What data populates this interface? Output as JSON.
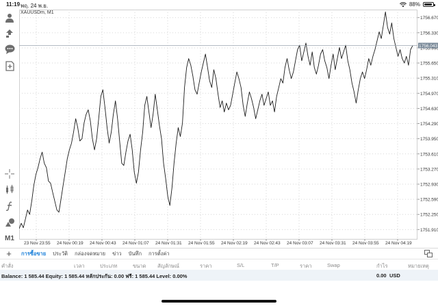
{
  "status_bar": {
    "time": "11:19",
    "date": "พฤ. 24 พ.ย.",
    "battery": "88%",
    "battery_level": 0.88
  },
  "chart": {
    "symbol_label": "XAUUSDm, M1",
    "current_price": "1756.043",
    "line_color": "#1a1a1a",
    "price_tag_color": "#7a8a99"
  },
  "left_tools": [
    {
      "icon": "person-icon"
    },
    {
      "icon": "arrows-icon"
    },
    {
      "icon": "chat-icon"
    },
    {
      "icon": "add-document-icon"
    },
    {
      "icon": "crosshair-icon"
    },
    {
      "icon": "indicator-icon"
    },
    {
      "icon": "function-icon"
    },
    {
      "icon": "objects-icon"
    },
    {
      "icon": "timeframe",
      "label": "M1"
    }
  ],
  "chart_data": {
    "type": "line",
    "title": "XAUUSDm, M1",
    "x_ticks": [
      "23 Nov 23:55",
      "24 Nov 00:19",
      "24 Nov 00:43",
      "24 Nov 01:07",
      "24 Nov 01:31",
      "24 Nov 01:55",
      "24 Nov 02:19",
      "24 Nov 02:43",
      "24 Nov 03:07",
      "24 Nov 03:31",
      "24 Nov 03:55",
      "24 Nov 04:19"
    ],
    "y_ticks": [
      "1756.670",
      "1756.330",
      "1755.990",
      "1755.650",
      "1755.310",
      "1754.970",
      "1754.630",
      "1754.290",
      "1753.950",
      "1753.610",
      "1753.270",
      "1752.930",
      "1752.590",
      "1752.250",
      "1751.910"
    ],
    "ylim": [
      1751.7,
      1756.85
    ],
    "grid": true,
    "current_price": 1756.043,
    "series": [
      {
        "values": [
          1751.93,
          1752.05,
          1751.95,
          1752.15,
          1752.35,
          1752.25,
          1752.55,
          1752.9,
          1753.15,
          1753.3,
          1753.5,
          1753.65,
          1753.4,
          1753.3,
          1753.0,
          1752.95,
          1752.75,
          1752.55,
          1752.35,
          1752.3,
          1752.6,
          1752.9,
          1753.2,
          1753.5,
          1753.7,
          1753.85,
          1754.1,
          1754.4,
          1754.2,
          1753.9,
          1753.95,
          1754.3,
          1754.5,
          1754.6,
          1754.35,
          1753.95,
          1753.7,
          1753.95,
          1754.4,
          1754.9,
          1755.05,
          1754.65,
          1754.2,
          1753.85,
          1754.1,
          1754.5,
          1754.8,
          1754.4,
          1753.9,
          1753.4,
          1753.35,
          1753.65,
          1753.9,
          1754.05,
          1753.7,
          1753.2,
          1752.95,
          1753.2,
          1753.7,
          1754.1,
          1754.7,
          1754.9,
          1754.55,
          1754.2,
          1754.5,
          1754.95,
          1754.6,
          1754.25,
          1753.95,
          1753.4,
          1753.05,
          1752.65,
          1752.45,
          1752.85,
          1753.4,
          1753.85,
          1754.2,
          1754.0,
          1754.3,
          1755.1,
          1755.55,
          1755.75,
          1755.6,
          1755.35,
          1755.05,
          1754.95,
          1755.2,
          1755.45,
          1755.65,
          1755.85,
          1755.55,
          1755.25,
          1755.1,
          1755.5,
          1755.3,
          1754.95,
          1754.65,
          1754.8,
          1754.55,
          1754.75,
          1754.6,
          1754.7,
          1754.95,
          1755.2,
          1755.45,
          1755.3,
          1755.1,
          1754.7,
          1754.45,
          1754.75,
          1755.0,
          1754.85,
          1754.65,
          1754.4,
          1754.6,
          1754.8,
          1754.95,
          1754.7,
          1754.85,
          1755.0,
          1754.7,
          1754.8,
          1754.55,
          1754.9,
          1755.1,
          1755.3,
          1755.2,
          1755.55,
          1755.75,
          1755.5,
          1755.3,
          1755.45,
          1755.7,
          1755.95,
          1756.05,
          1755.7,
          1755.9,
          1756.1,
          1755.8,
          1755.6,
          1755.9,
          1755.55,
          1755.4,
          1755.6,
          1755.85,
          1755.95,
          1755.7,
          1755.55,
          1755.3,
          1755.6,
          1755.85,
          1755.5,
          1755.75,
          1756.0,
          1755.75,
          1755.9,
          1756.05,
          1755.7,
          1755.5,
          1755.2,
          1755.0,
          1754.75,
          1755.05,
          1755.3,
          1755.45,
          1755.3,
          1755.5,
          1755.75,
          1755.6,
          1755.8,
          1755.95,
          1756.15,
          1756.35,
          1756.2,
          1756.5,
          1756.8,
          1756.45,
          1756.3,
          1756.55,
          1756.2,
          1756.0,
          1755.8,
          1755.95,
          1755.75,
          1755.65,
          1755.8,
          1755.6,
          1755.95,
          1756.04
        ]
      }
    ]
  },
  "tabs": {
    "items": [
      {
        "label": "การซื้อขาย",
        "active": true
      },
      {
        "label": "ประวัติ",
        "active": false
      },
      {
        "label": "กล่องจดหมาย",
        "active": false
      },
      {
        "label": "ข่าว",
        "active": false
      },
      {
        "label": "บันทึก",
        "active": false
      },
      {
        "label": "การตั้งค่า",
        "active": false
      }
    ]
  },
  "columns": [
    "คำสั่ง",
    "เวลา",
    "ประเภท",
    "ขนาด",
    "สัญลักษณ์",
    "ราคา",
    "S/L",
    "T/P",
    "ราคา",
    "Swap",
    "กำไร",
    "หมายเหตุ"
  ],
  "balance": {
    "text": "Balance: 1 585.44 Equity: 1 585.44 หลักประกัน: 0.00 ฟรี: 1 585.44 Level: 0.00%",
    "profit": "0.00",
    "currency": "USD"
  }
}
